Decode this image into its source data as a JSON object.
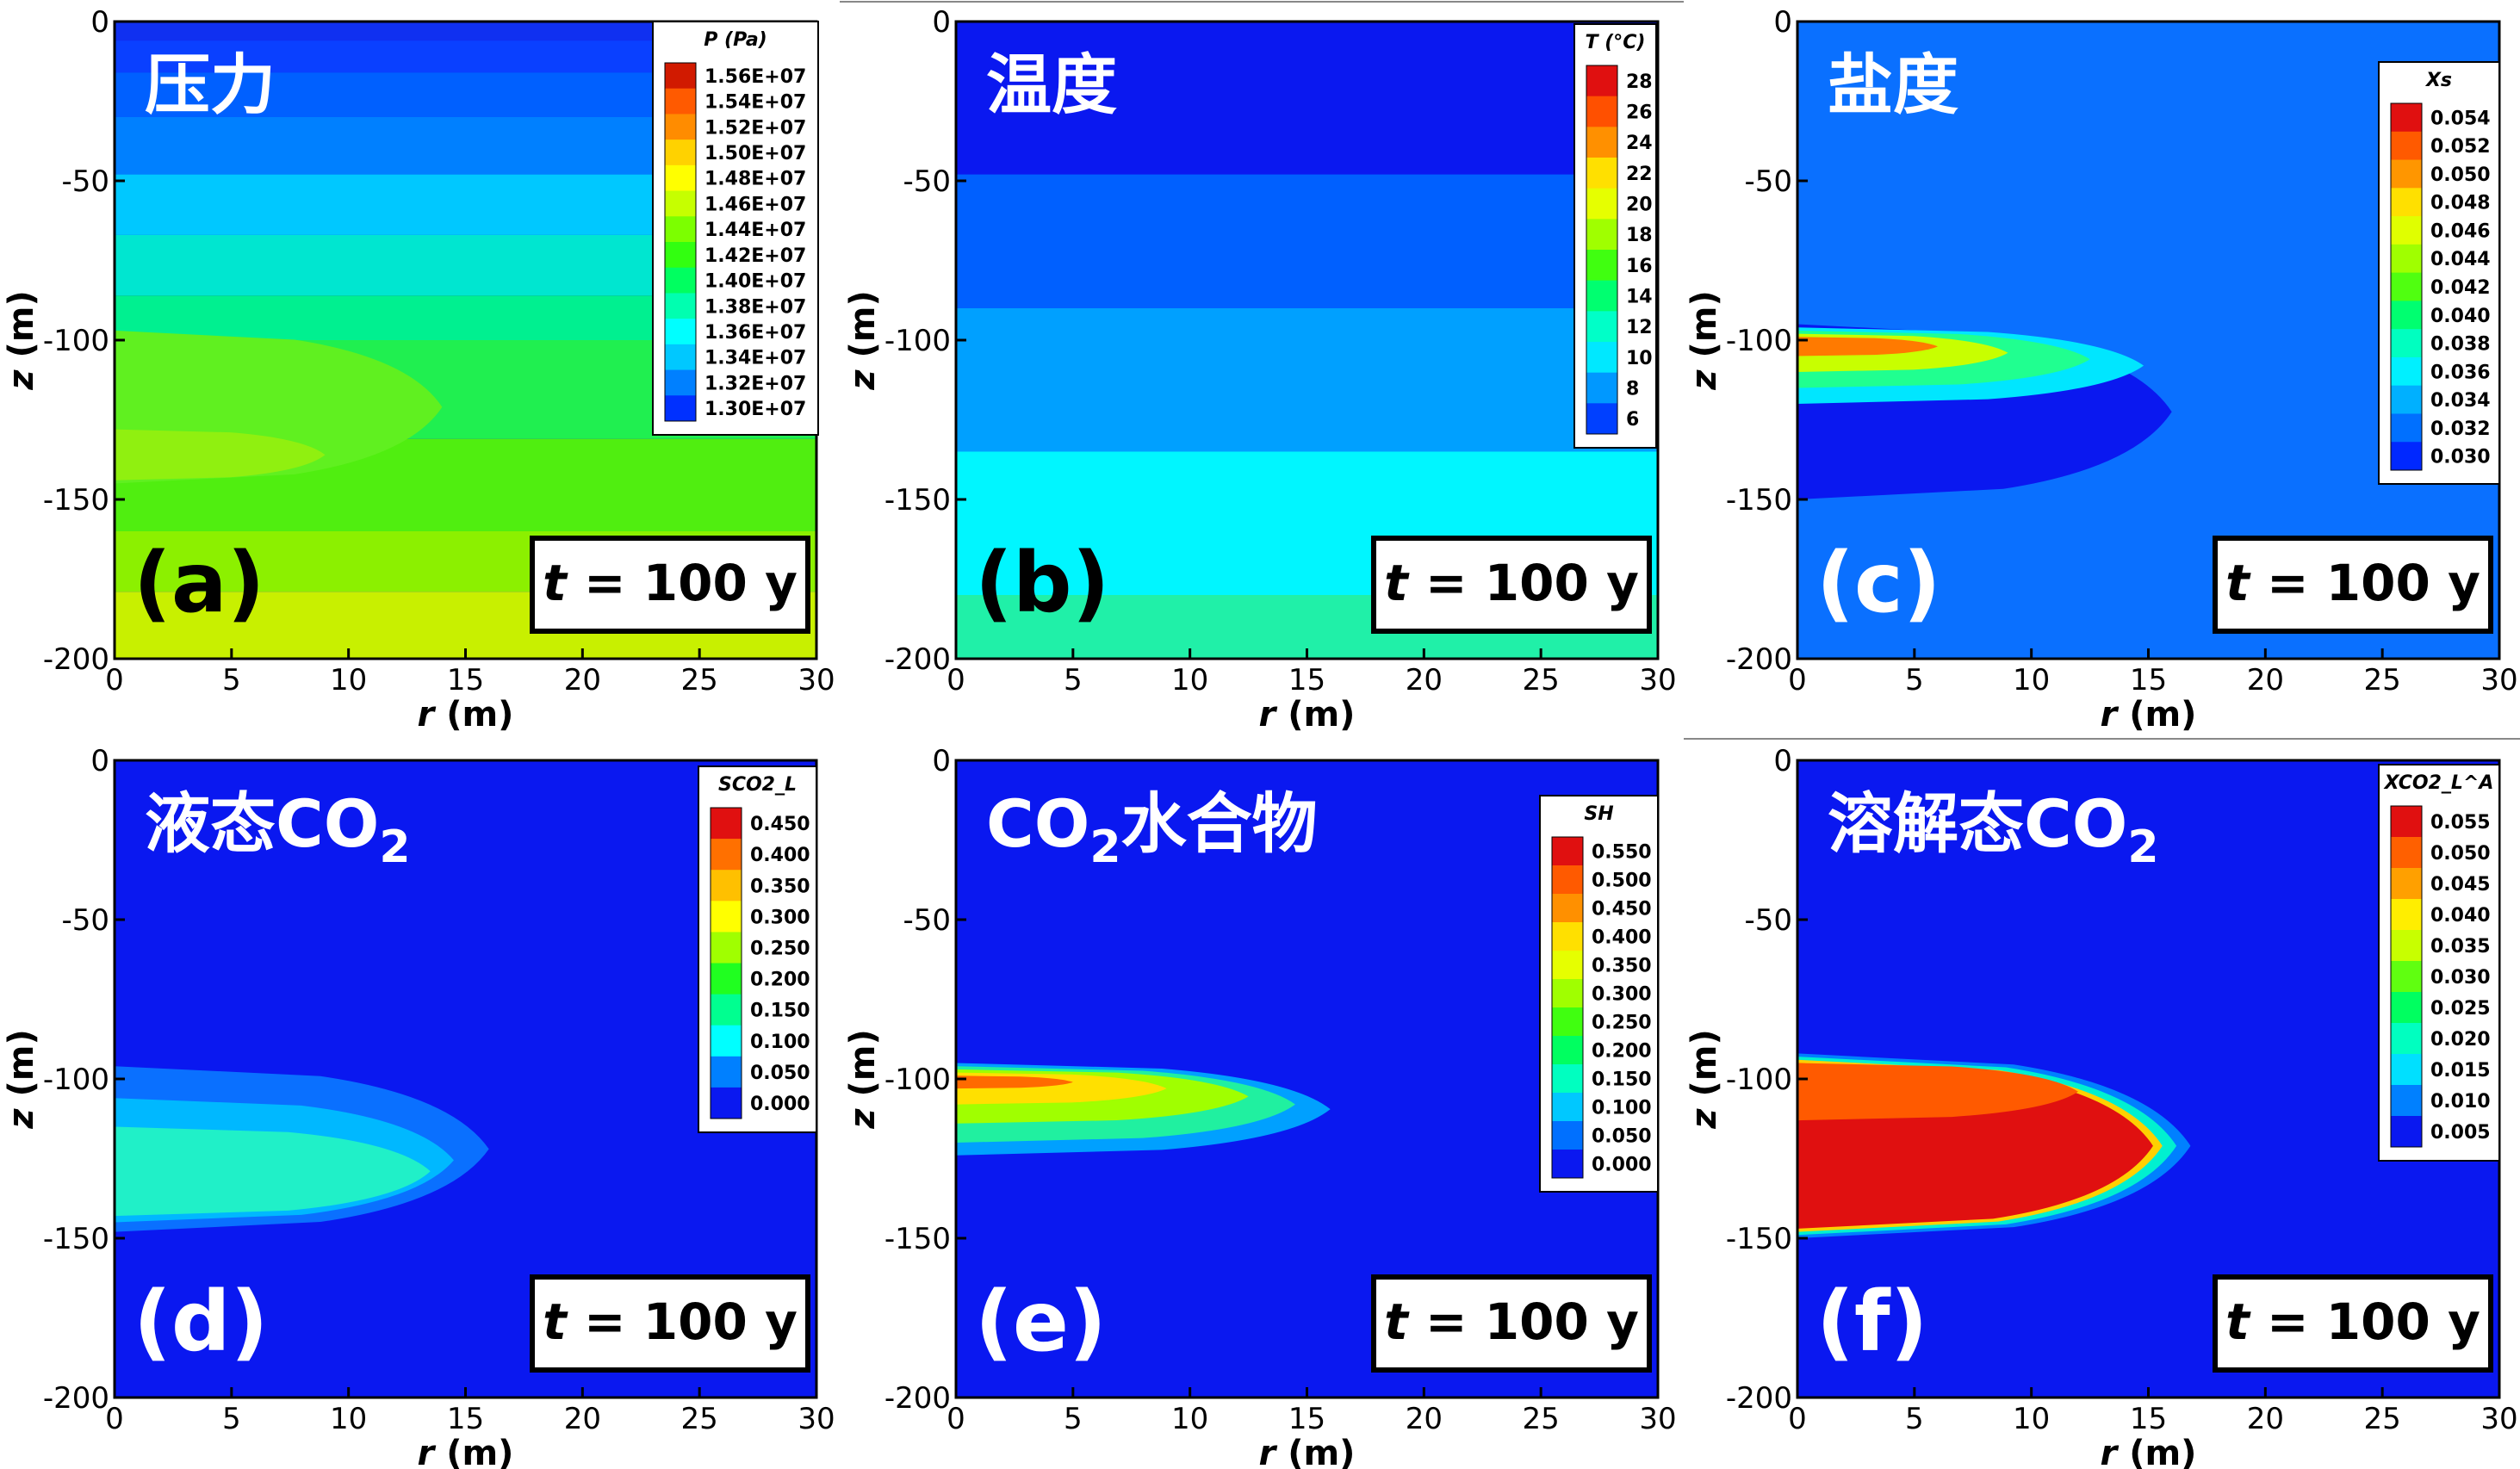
{
  "figure": {
    "xlabel": "r (m)",
    "ylabel": "z (m)",
    "xlim": [
      0,
      30
    ],
    "ylim": [
      -200,
      0
    ],
    "x_ticks": [
      "0",
      "5",
      "10",
      "15",
      "20",
      "25",
      "30"
    ],
    "y_ticks": [
      "0",
      "-50",
      "-100",
      "-150",
      "-200"
    ],
    "time_label_var": "t",
    "time_label_rest": " = 100 y"
  },
  "chart_data": [
    {
      "type": "heatmap",
      "panel": "(a)",
      "title": "压力",
      "legend_title": "P (Pa)",
      "legend_ticks": [
        "1.56E+07",
        "1.54E+07",
        "1.52E+07",
        "1.50E+07",
        "1.48E+07",
        "1.46E+07",
        "1.44E+07",
        "1.42E+07",
        "1.40E+07",
        "1.38E+07",
        "1.36E+07",
        "1.34E+07",
        "1.32E+07",
        "1.30E+07"
      ],
      "legend_colors": [
        "#d11a00",
        "#ff5a00",
        "#ff8c00",
        "#ffd200",
        "#ffff00",
        "#c6ff00",
        "#7cff00",
        "#32ff10",
        "#00ff60",
        "#00ffb0",
        "#00ffff",
        "#00c8ff",
        "#0080ff",
        "#0030ff"
      ],
      "background": "#0a18f0",
      "bands": [
        {
          "z_top": 0,
          "z_bottom": -6,
          "color": "#1030f0"
        },
        {
          "z_top": -6,
          "z_bottom": -16,
          "color": "#0a40ff"
        },
        {
          "z_top": -16,
          "z_bottom": -30,
          "color": "#0060ff"
        },
        {
          "z_top": -30,
          "z_bottom": -48,
          "color": "#0080ff"
        },
        {
          "z_top": -48,
          "z_bottom": -67,
          "color": "#00c8ff"
        },
        {
          "z_top": -67,
          "z_bottom": -86,
          "color": "#00e6d0"
        },
        {
          "z_top": -86,
          "z_bottom": -100,
          "color": "#00f090"
        },
        {
          "z_top": -100,
          "z_bottom": -131,
          "color": "#20ef50"
        },
        {
          "z_top": -131,
          "z_bottom": -160,
          "color": "#50ee10"
        },
        {
          "z_top": -160,
          "z_bottom": -179,
          "color": "#8cf000"
        },
        {
          "z_top": -179,
          "z_bottom": -200,
          "color": "#c8f000"
        }
      ],
      "plumes": [
        {
          "z_top": -97,
          "z_bottom": -145,
          "r_max": 14,
          "color": "#60f020"
        },
        {
          "z_top": -128,
          "z_bottom": -144,
          "r_max": 9,
          "color": "#90f010"
        }
      ]
    },
    {
      "type": "heatmap",
      "panel": "(b)",
      "title": "温度",
      "legend_title": "T (°C)",
      "legend_ticks": [
        "28",
        "26",
        "24",
        "22",
        "20",
        "18",
        "16",
        "14",
        "12",
        "10",
        "8",
        "6"
      ],
      "legend_colors": [
        "#e01010",
        "#ff5000",
        "#ff9000",
        "#ffe000",
        "#e6ff00",
        "#a0ff00",
        "#40ff10",
        "#00ff70",
        "#00ffc8",
        "#00e8ff",
        "#0098ff",
        "#0040ff"
      ],
      "background": "#0a18f0",
      "bands": [
        {
          "z_top": 0,
          "z_bottom": -48,
          "color": "#0a18f0"
        },
        {
          "z_top": -48,
          "z_bottom": -90,
          "color": "#0060ff"
        },
        {
          "z_top": -90,
          "z_bottom": -135,
          "color": "#00a0ff"
        },
        {
          "z_top": -135,
          "z_bottom": -180,
          "color": "#00f6ff"
        },
        {
          "z_top": -180,
          "z_bottom": -200,
          "color": "#20f0a8"
        }
      ],
      "plumes": []
    },
    {
      "type": "heatmap",
      "panel": "(c)",
      "title": "盐度",
      "legend_title": "Xs",
      "legend_ticks": [
        "0.054",
        "0.052",
        "0.050",
        "0.048",
        "0.046",
        "0.044",
        "0.042",
        "0.040",
        "0.038",
        "0.036",
        "0.034",
        "0.032",
        "0.030"
      ],
      "legend_colors": [
        "#e01010",
        "#ff5a00",
        "#ff9600",
        "#ffe000",
        "#e0ff00",
        "#a0ff00",
        "#50ff10",
        "#00ff70",
        "#00ffc0",
        "#00f0ff",
        "#00b0ff",
        "#0070ff",
        "#0028ff"
      ],
      "background": "#0a70ff",
      "bands": [],
      "plumes": [
        {
          "z_top": -95,
          "z_bottom": -150,
          "r_max": 16,
          "color": "#0a18f0"
        },
        {
          "z_top": -96,
          "z_bottom": -120,
          "r_max": 14.8,
          "color": "#00e6ff"
        },
        {
          "z_top": -97,
          "z_bottom": -115,
          "r_max": 12.5,
          "color": "#20ff90"
        },
        {
          "z_top": -98,
          "z_bottom": -110,
          "r_max": 9,
          "color": "#c8ff00"
        },
        {
          "z_top": -99,
          "z_bottom": -105,
          "r_max": 6,
          "color": "#ff7a00"
        }
      ]
    },
    {
      "type": "heatmap",
      "panel": "(d)",
      "title": "液态CO",
      "title_sub": "2",
      "legend_title": "SCO2_L",
      "legend_ticks": [
        "0.450",
        "0.400",
        "0.350",
        "0.300",
        "0.250",
        "0.200",
        "0.150",
        "0.100",
        "0.050",
        "0.000"
      ],
      "legend_colors": [
        "#e01010",
        "#ff7000",
        "#ffc000",
        "#ffff00",
        "#a0ff00",
        "#20ff20",
        "#00ff90",
        "#00ffff",
        "#0080ff",
        "#0a18f0"
      ],
      "background": "#0a18f0",
      "bands": [],
      "plumes": [
        {
          "z_top": -96,
          "z_bottom": -148,
          "r_max": 16,
          "color": "#0a70ff"
        },
        {
          "z_top": -106,
          "z_bottom": -145,
          "r_max": 14.5,
          "color": "#00b8ff"
        },
        {
          "z_top": -115,
          "z_bottom": -143,
          "r_max": 13.5,
          "color": "#20f0c8"
        }
      ]
    },
    {
      "type": "heatmap",
      "panel": "(e)",
      "title": "CO",
      "title_sub": "2",
      "title_rest": "水合物",
      "legend_title": "SH",
      "legend_ticks": [
        "0.550",
        "0.500",
        "0.450",
        "0.400",
        "0.350",
        "0.300",
        "0.250",
        "0.200",
        "0.150",
        "0.100",
        "0.050",
        "0.000"
      ],
      "legend_colors": [
        "#e01010",
        "#ff5a00",
        "#ff9000",
        "#ffe000",
        "#e6ff00",
        "#a0ff00",
        "#40ff10",
        "#00ff60",
        "#00ffc0",
        "#00c8ff",
        "#0070ff",
        "#0a18f0"
      ],
      "background": "#0a18f0",
      "bands": [],
      "plumes": [
        {
          "z_top": -95,
          "z_bottom": -124,
          "r_max": 16,
          "color": "#00a0ff"
        },
        {
          "z_top": -96,
          "z_bottom": -120,
          "r_max": 14.5,
          "color": "#20f0a0"
        },
        {
          "z_top": -97,
          "z_bottom": -114,
          "r_max": 12.5,
          "color": "#a0ff00"
        },
        {
          "z_top": -98,
          "z_bottom": -108,
          "r_max": 9,
          "color": "#ffe000"
        },
        {
          "z_top": -99,
          "z_bottom": -103,
          "r_max": 5,
          "color": "#ff6a00"
        }
      ]
    },
    {
      "type": "heatmap",
      "panel": "(f)",
      "title": "溶解态CO",
      "title_sub": "2",
      "legend_title": "XCO2_L^A",
      "legend_ticks": [
        "0.055",
        "0.050",
        "0.045",
        "0.040",
        "0.035",
        "0.030",
        "0.025",
        "0.020",
        "0.015",
        "0.010",
        "0.005"
      ],
      "legend_colors": [
        "#e01010",
        "#ff6000",
        "#ffa000",
        "#ffee00",
        "#c8ff00",
        "#60ff10",
        "#00ff60",
        "#00ffc0",
        "#00e0ff",
        "#0080ff",
        "#0a18f0"
      ],
      "background": "#0a18f0",
      "bands": [],
      "plumes": [
        {
          "z_top": -92,
          "z_bottom": -150,
          "r_max": 16.8,
          "color": "#0080ff"
        },
        {
          "z_top": -93,
          "z_bottom": -149,
          "r_max": 16.2,
          "color": "#00f0d0"
        },
        {
          "z_top": -94,
          "z_bottom": -148,
          "r_max": 15.6,
          "color": "#ffd000"
        },
        {
          "z_top": -95,
          "z_bottom": -147,
          "r_max": 15.2,
          "color": "#e01010"
        },
        {
          "z_top": -95,
          "z_bottom": -113,
          "r_max": 12,
          "color": "#ff5a00"
        }
      ]
    }
  ]
}
